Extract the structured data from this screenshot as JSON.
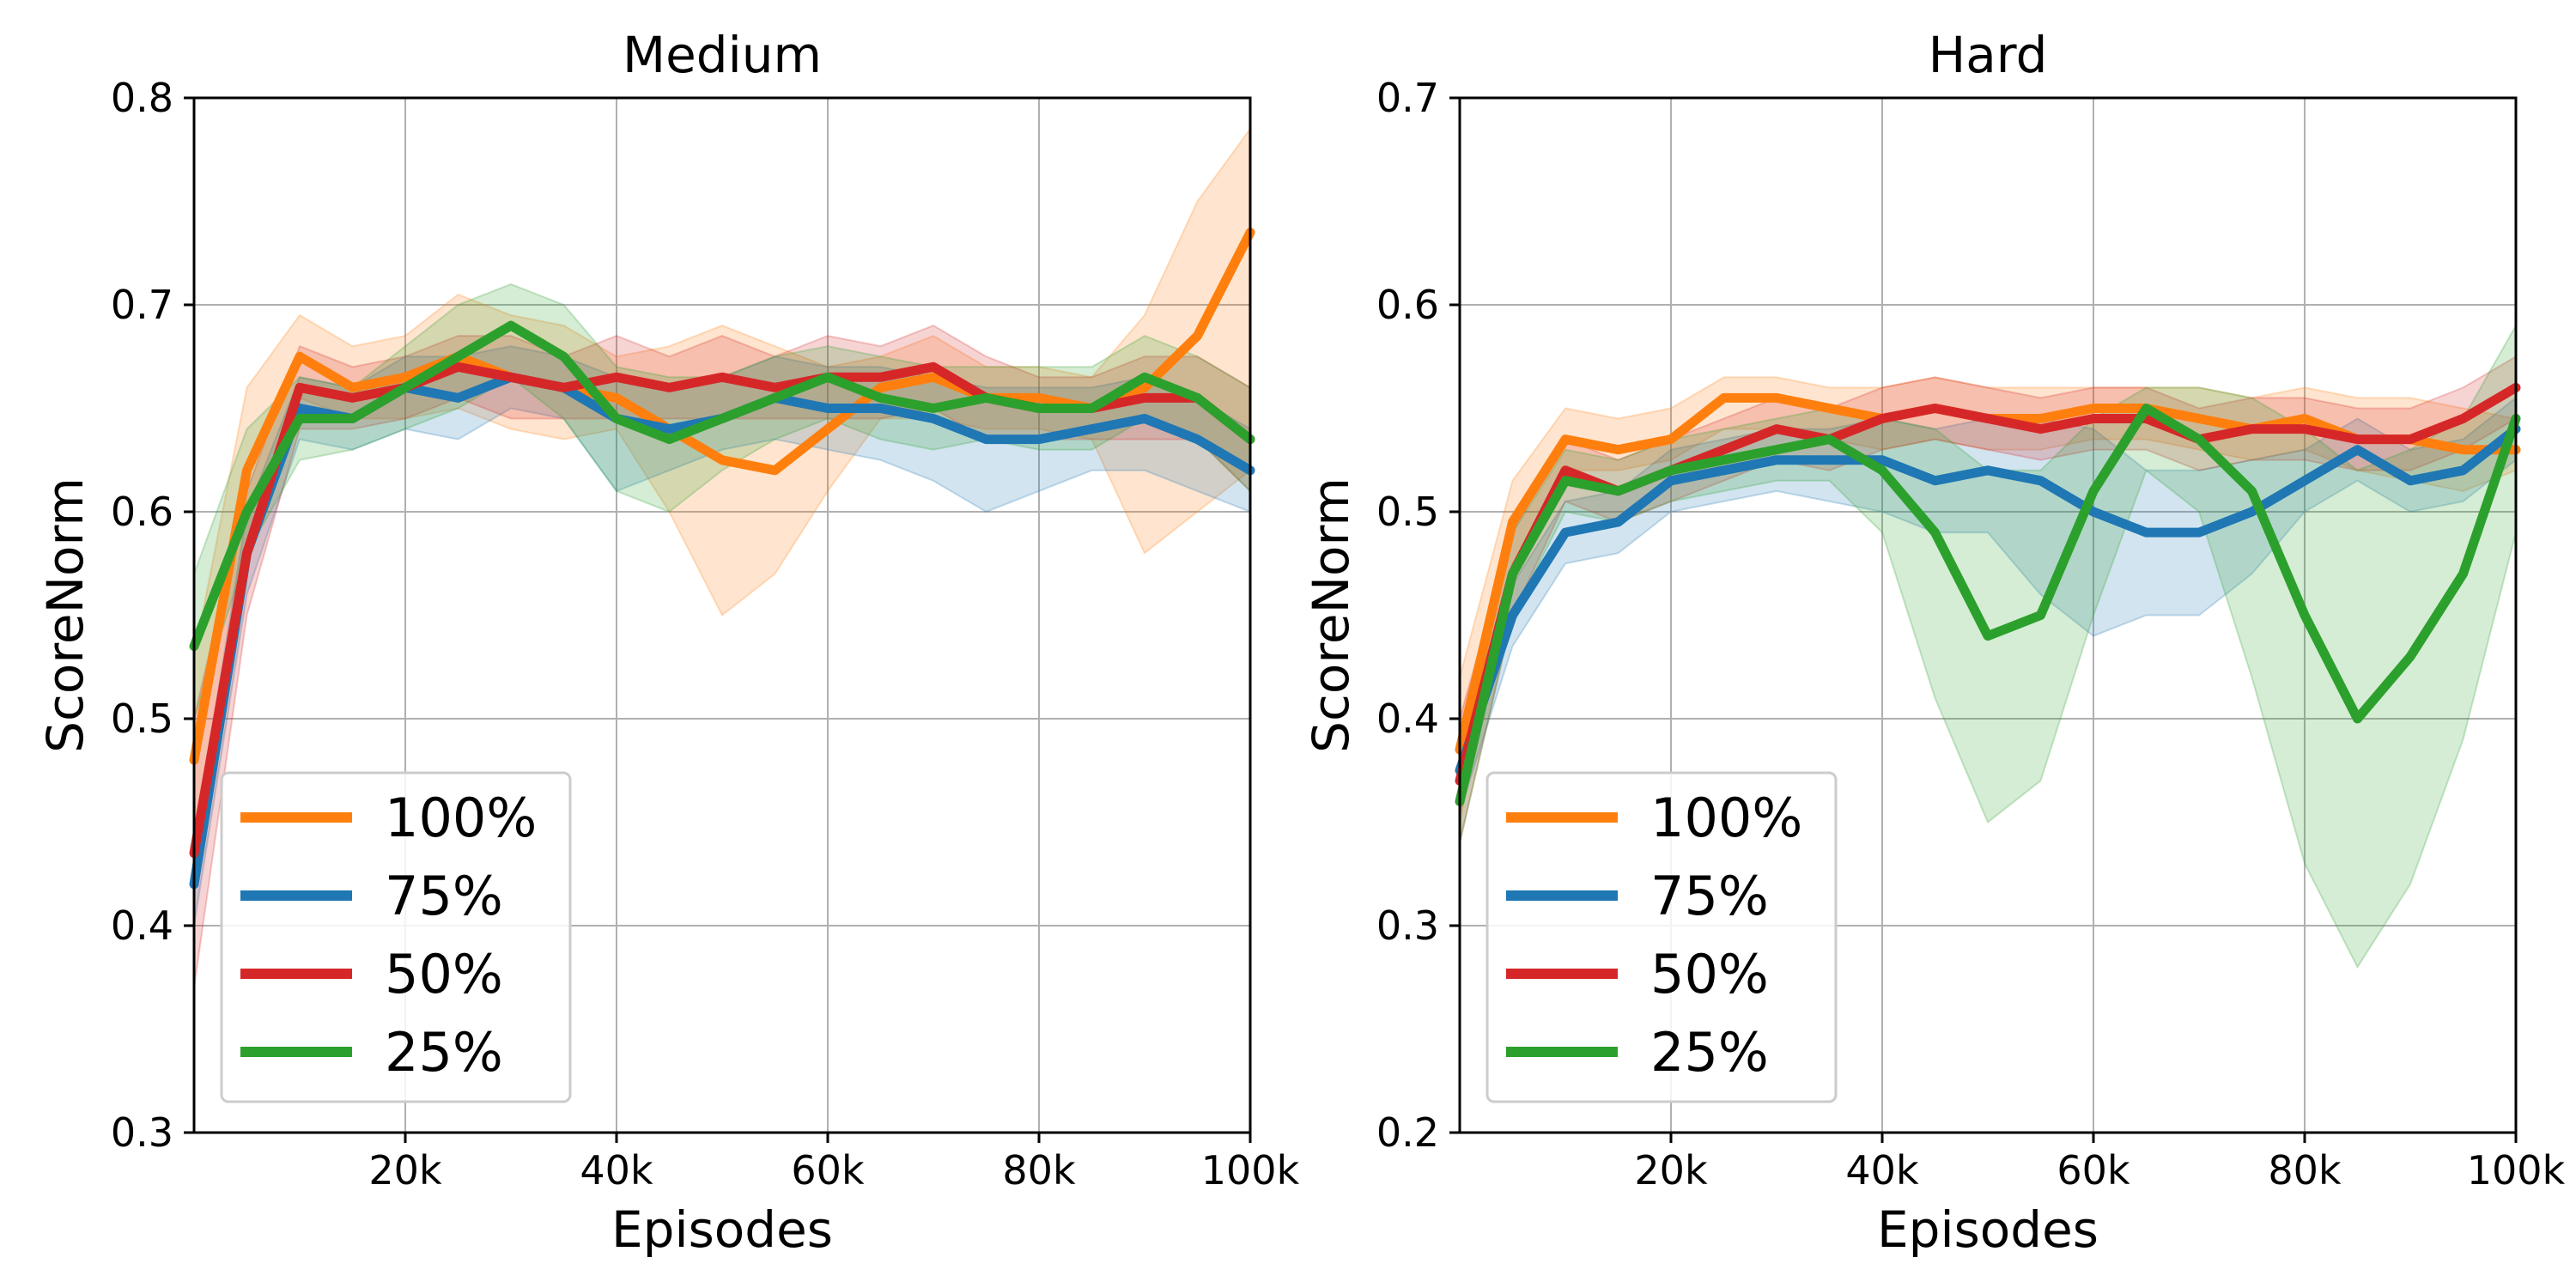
{
  "chart_data": [
    {
      "type": "line",
      "title": "Medium",
      "xlabel": "Episodes",
      "ylabel": "ScoreNorm",
      "xlim": [
        0,
        100000
      ],
      "ylim": [
        0.3,
        0.8
      ],
      "xticks": [
        20000,
        40000,
        60000,
        80000,
        100000
      ],
      "xtick_labels": [
        "20k",
        "40k",
        "60k",
        "80k",
        "100k"
      ],
      "yticks": [
        0.3,
        0.4,
        0.5,
        0.6,
        0.7,
        0.8
      ],
      "ytick_labels": [
        "0.3",
        "0.4",
        "0.5",
        "0.6",
        "0.7",
        "0.8"
      ],
      "grid": true,
      "legend": "lower-left",
      "series": [
        {
          "name": "100%",
          "color": "#ff7f0e",
          "x": [
            0,
            5000,
            10000,
            15000,
            20000,
            25000,
            30000,
            35000,
            40000,
            45000,
            50000,
            55000,
            60000,
            65000,
            70000,
            75000,
            80000,
            85000,
            90000,
            95000,
            100000
          ],
          "y": [
            0.48,
            0.62,
            0.675,
            0.66,
            0.665,
            0.675,
            0.665,
            0.66,
            0.655,
            0.64,
            0.625,
            0.62,
            0.64,
            0.66,
            0.665,
            0.655,
            0.655,
            0.65,
            0.66,
            0.685,
            0.735
          ],
          "lower": [
            0.43,
            0.58,
            0.655,
            0.645,
            0.645,
            0.65,
            0.64,
            0.635,
            0.64,
            0.6,
            0.55,
            0.57,
            0.61,
            0.645,
            0.645,
            0.64,
            0.64,
            0.635,
            0.58,
            0.6,
            0.62
          ],
          "upper": [
            0.53,
            0.66,
            0.695,
            0.68,
            0.685,
            0.705,
            0.695,
            0.69,
            0.675,
            0.68,
            0.69,
            0.68,
            0.67,
            0.675,
            0.685,
            0.67,
            0.67,
            0.665,
            0.695,
            0.75,
            0.785
          ]
        },
        {
          "name": "75%",
          "color": "#1f77b4",
          "x": [
            0,
            5000,
            10000,
            15000,
            20000,
            25000,
            30000,
            35000,
            40000,
            45000,
            50000,
            55000,
            60000,
            65000,
            70000,
            75000,
            80000,
            85000,
            90000,
            95000,
            100000
          ],
          "y": [
            0.42,
            0.58,
            0.65,
            0.645,
            0.66,
            0.655,
            0.665,
            0.66,
            0.645,
            0.64,
            0.645,
            0.655,
            0.65,
            0.65,
            0.645,
            0.635,
            0.635,
            0.64,
            0.645,
            0.635,
            0.62
          ],
          "lower": [
            0.4,
            0.56,
            0.635,
            0.63,
            0.64,
            0.635,
            0.65,
            0.645,
            0.61,
            0.62,
            0.63,
            0.635,
            0.63,
            0.625,
            0.615,
            0.6,
            0.61,
            0.62,
            0.62,
            0.61,
            0.6
          ],
          "upper": [
            0.44,
            0.6,
            0.665,
            0.66,
            0.675,
            0.675,
            0.68,
            0.675,
            0.665,
            0.66,
            0.665,
            0.675,
            0.67,
            0.67,
            0.665,
            0.66,
            0.66,
            0.66,
            0.665,
            0.655,
            0.64
          ]
        },
        {
          "name": "50%",
          "color": "#d62728",
          "x": [
            0,
            5000,
            10000,
            15000,
            20000,
            25000,
            30000,
            35000,
            40000,
            45000,
            50000,
            55000,
            60000,
            65000,
            70000,
            75000,
            80000,
            85000,
            90000,
            95000,
            100000
          ],
          "y": [
            0.435,
            0.58,
            0.66,
            0.655,
            0.66,
            0.67,
            0.665,
            0.66,
            0.665,
            0.66,
            0.665,
            0.66,
            0.665,
            0.665,
            0.67,
            0.655,
            0.65,
            0.65,
            0.655,
            0.655,
            0.635
          ],
          "lower": [
            0.37,
            0.55,
            0.64,
            0.64,
            0.645,
            0.655,
            0.645,
            0.645,
            0.645,
            0.645,
            0.645,
            0.645,
            0.645,
            0.645,
            0.65,
            0.635,
            0.635,
            0.635,
            0.635,
            0.635,
            0.61
          ],
          "upper": [
            0.5,
            0.61,
            0.68,
            0.67,
            0.675,
            0.685,
            0.685,
            0.675,
            0.685,
            0.675,
            0.685,
            0.675,
            0.685,
            0.68,
            0.69,
            0.675,
            0.665,
            0.665,
            0.675,
            0.675,
            0.66
          ]
        },
        {
          "name": "25%",
          "color": "#2ca02c",
          "x": [
            0,
            5000,
            10000,
            15000,
            20000,
            25000,
            30000,
            35000,
            40000,
            45000,
            50000,
            55000,
            60000,
            65000,
            70000,
            75000,
            80000,
            85000,
            90000,
            95000,
            100000
          ],
          "y": [
            0.535,
            0.6,
            0.645,
            0.645,
            0.66,
            0.675,
            0.69,
            0.675,
            0.645,
            0.635,
            0.645,
            0.655,
            0.665,
            0.655,
            0.65,
            0.655,
            0.65,
            0.65,
            0.665,
            0.655,
            0.635
          ],
          "lower": [
            0.5,
            0.58,
            0.625,
            0.63,
            0.64,
            0.65,
            0.665,
            0.645,
            0.61,
            0.6,
            0.62,
            0.635,
            0.645,
            0.635,
            0.63,
            0.635,
            0.63,
            0.63,
            0.645,
            0.635,
            0.61
          ],
          "upper": [
            0.57,
            0.64,
            0.665,
            0.66,
            0.68,
            0.7,
            0.71,
            0.7,
            0.67,
            0.665,
            0.665,
            0.675,
            0.68,
            0.675,
            0.67,
            0.67,
            0.67,
            0.67,
            0.685,
            0.675,
            0.66
          ]
        }
      ]
    },
    {
      "type": "line",
      "title": "Hard",
      "xlabel": "Episodes",
      "ylabel": "ScoreNorm",
      "xlim": [
        0,
        100000
      ],
      "ylim": [
        0.2,
        0.7
      ],
      "xticks": [
        20000,
        40000,
        60000,
        80000,
        100000
      ],
      "xtick_labels": [
        "20k",
        "40k",
        "60k",
        "80k",
        "100k"
      ],
      "yticks": [
        0.2,
        0.3,
        0.4,
        0.5,
        0.6,
        0.7
      ],
      "ytick_labels": [
        "0.2",
        "0.3",
        "0.4",
        "0.5",
        "0.6",
        "0.7"
      ],
      "grid": true,
      "legend": "lower-left",
      "series": [
        {
          "name": "100%",
          "color": "#ff7f0e",
          "x": [
            0,
            5000,
            10000,
            15000,
            20000,
            25000,
            30000,
            35000,
            40000,
            45000,
            50000,
            55000,
            60000,
            65000,
            70000,
            75000,
            80000,
            85000,
            90000,
            95000,
            100000
          ],
          "y": [
            0.385,
            0.495,
            0.535,
            0.53,
            0.535,
            0.555,
            0.555,
            0.55,
            0.545,
            0.55,
            0.545,
            0.545,
            0.55,
            0.55,
            0.545,
            0.54,
            0.545,
            0.535,
            0.535,
            0.53,
            0.53
          ],
          "lower": [
            0.35,
            0.475,
            0.52,
            0.52,
            0.525,
            0.54,
            0.54,
            0.535,
            0.53,
            0.535,
            0.53,
            0.53,
            0.535,
            0.535,
            0.53,
            0.525,
            0.53,
            0.52,
            0.515,
            0.51,
            0.52
          ],
          "upper": [
            0.42,
            0.515,
            0.55,
            0.545,
            0.55,
            0.565,
            0.565,
            0.56,
            0.56,
            0.565,
            0.56,
            0.56,
            0.56,
            0.56,
            0.56,
            0.555,
            0.56,
            0.555,
            0.555,
            0.55,
            0.545
          ]
        },
        {
          "name": "75%",
          "color": "#1f77b4",
          "x": [
            0,
            5000,
            10000,
            15000,
            20000,
            25000,
            30000,
            35000,
            40000,
            45000,
            50000,
            55000,
            60000,
            65000,
            70000,
            75000,
            80000,
            85000,
            90000,
            95000,
            100000
          ],
          "y": [
            0.375,
            0.45,
            0.49,
            0.495,
            0.515,
            0.52,
            0.525,
            0.525,
            0.525,
            0.515,
            0.52,
            0.515,
            0.5,
            0.49,
            0.49,
            0.5,
            0.515,
            0.53,
            0.515,
            0.52,
            0.54
          ],
          "lower": [
            0.355,
            0.435,
            0.475,
            0.48,
            0.5,
            0.505,
            0.51,
            0.505,
            0.5,
            0.49,
            0.49,
            0.46,
            0.44,
            0.45,
            0.45,
            0.47,
            0.5,
            0.515,
            0.5,
            0.505,
            0.525
          ],
          "upper": [
            0.395,
            0.465,
            0.505,
            0.51,
            0.53,
            0.535,
            0.54,
            0.54,
            0.545,
            0.54,
            0.545,
            0.545,
            0.54,
            0.52,
            0.52,
            0.525,
            0.53,
            0.545,
            0.53,
            0.535,
            0.555
          ]
        },
        {
          "name": "50%",
          "color": "#d62728",
          "x": [
            0,
            5000,
            10000,
            15000,
            20000,
            25000,
            30000,
            35000,
            40000,
            45000,
            50000,
            55000,
            60000,
            65000,
            70000,
            75000,
            80000,
            85000,
            90000,
            95000,
            100000
          ],
          "y": [
            0.37,
            0.47,
            0.52,
            0.51,
            0.52,
            0.53,
            0.54,
            0.535,
            0.545,
            0.55,
            0.545,
            0.54,
            0.545,
            0.545,
            0.535,
            0.54,
            0.54,
            0.535,
            0.535,
            0.545,
            0.56
          ],
          "lower": [
            0.34,
            0.45,
            0.505,
            0.495,
            0.505,
            0.515,
            0.525,
            0.52,
            0.53,
            0.535,
            0.53,
            0.525,
            0.53,
            0.53,
            0.52,
            0.525,
            0.525,
            0.52,
            0.52,
            0.53,
            0.545
          ],
          "upper": [
            0.4,
            0.49,
            0.535,
            0.525,
            0.535,
            0.545,
            0.555,
            0.55,
            0.56,
            0.565,
            0.56,
            0.555,
            0.56,
            0.56,
            0.55,
            0.555,
            0.555,
            0.55,
            0.55,
            0.56,
            0.575
          ]
        },
        {
          "name": "25%",
          "color": "#2ca02c",
          "x": [
            0,
            5000,
            10000,
            15000,
            20000,
            25000,
            30000,
            35000,
            40000,
            45000,
            50000,
            55000,
            60000,
            65000,
            70000,
            75000,
            80000,
            85000,
            90000,
            95000,
            100000
          ],
          "y": [
            0.36,
            0.47,
            0.515,
            0.51,
            0.52,
            0.525,
            0.53,
            0.535,
            0.52,
            0.49,
            0.44,
            0.45,
            0.51,
            0.55,
            0.535,
            0.51,
            0.45,
            0.4,
            0.43,
            0.47,
            0.545
          ],
          "lower": [
            0.34,
            0.45,
            0.5,
            0.495,
            0.505,
            0.51,
            0.515,
            0.515,
            0.49,
            0.41,
            0.35,
            0.37,
            0.45,
            0.52,
            0.5,
            0.42,
            0.33,
            0.28,
            0.32,
            0.39,
            0.49
          ],
          "upper": [
            0.38,
            0.49,
            0.53,
            0.525,
            0.535,
            0.54,
            0.545,
            0.55,
            0.545,
            0.54,
            0.52,
            0.52,
            0.545,
            0.56,
            0.56,
            0.555,
            0.54,
            0.52,
            0.53,
            0.545,
            0.59
          ]
        }
      ]
    }
  ]
}
